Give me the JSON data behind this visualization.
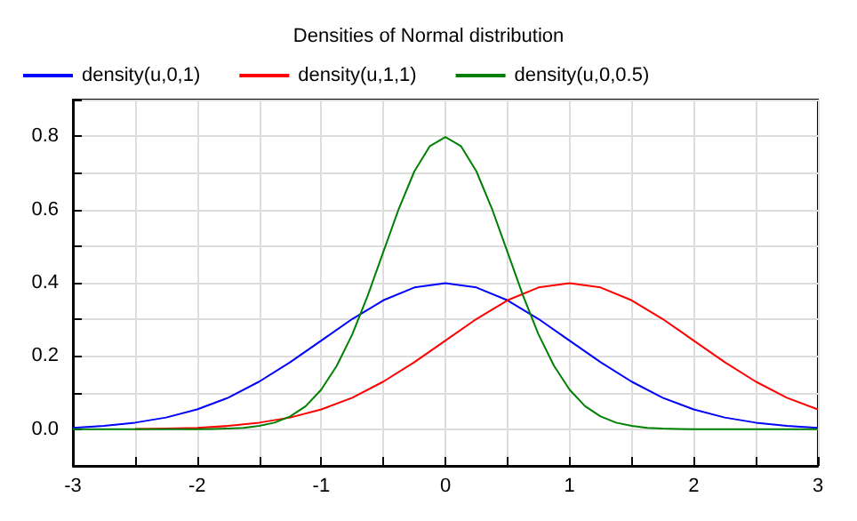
{
  "chart_data": {
    "type": "line",
    "title": "Densities of Normal distribution",
    "legend": "top left",
    "grid": true,
    "line_style": "solid",
    "marker": "none",
    "xlim": [
      -3,
      3
    ],
    "xticks": [
      -3,
      {
        "value": -2.5,
        "label": null
      },
      -2,
      {
        "value": -1.5,
        "label": null
      },
      -1,
      {
        "value": -0.5,
        "label": null
      },
      0,
      {
        "value": 0.5,
        "label": null
      },
      1,
      {
        "value": 1.5,
        "label": null
      },
      2,
      {
        "value": 2.5,
        "label": null
      },
      3
    ],
    "ylim": [
      -0.1,
      0.9
    ],
    "yticks": [
      {
        "value": -0.1,
        "label": null
      },
      {
        "value": 0,
        "label": "0.0"
      },
      {
        "value": 0.1,
        "label": null
      },
      0.2,
      {
        "value": 0.3,
        "label": null
      },
      0.4,
      {
        "value": 0.5,
        "label": null
      },
      0.6,
      {
        "value": 0.7,
        "label": null
      },
      0.8,
      {
        "value": 0.9,
        "label": null
      }
    ],
    "series": [
      {
        "name": "density(u,0,1)",
        "color": "#0000ff",
        "x": [
          -3,
          -2.75,
          -2.5,
          -2.25,
          -2,
          -1.75,
          -1.5,
          -1.25,
          -1,
          -0.75,
          -0.5,
          -0.25,
          0,
          0.25,
          0.5,
          0.75,
          1,
          1.25,
          1.5,
          1.75,
          2,
          2.25,
          2.5,
          2.75,
          3
        ],
        "values": [
          0.004,
          0.009,
          0.018,
          0.032,
          0.054,
          0.086,
          0.13,
          0.183,
          0.242,
          0.301,
          0.352,
          0.387,
          0.399,
          0.387,
          0.352,
          0.301,
          0.242,
          0.183,
          0.13,
          0.086,
          0.054,
          0.032,
          0.018,
          0.009,
          0.004
        ]
      },
      {
        "name": "density(u,1,1)",
        "color": "#ff0000",
        "x": [
          -2.5,
          -2.25,
          -2,
          -1.75,
          -1.5,
          -1.25,
          -1,
          -0.75,
          -0.5,
          -0.25,
          0,
          0.25,
          0.5,
          0.75,
          1,
          1.25,
          1.5,
          1.75,
          2,
          2.25,
          2.5,
          2.75,
          3
        ],
        "values": [
          0.001,
          0.002,
          0.004,
          0.009,
          0.018,
          0.032,
          0.054,
          0.086,
          0.13,
          0.183,
          0.242,
          0.301,
          0.352,
          0.387,
          0.399,
          0.387,
          0.352,
          0.301,
          0.242,
          0.183,
          0.13,
          0.086,
          0.054
        ]
      },
      {
        "name": "density(u,0,0.5)",
        "color": "#008000",
        "x": [
          -3,
          -2.5,
          -2,
          -1.875,
          -1.75,
          -1.625,
          -1.5,
          -1.375,
          -1.25,
          -1.125,
          -1,
          -0.875,
          -0.75,
          -0.625,
          -0.5,
          -0.375,
          -0.25,
          -0.125,
          0,
          0.125,
          0.25,
          0.375,
          0.5,
          0.625,
          0.75,
          0.875,
          1,
          1.125,
          1.25,
          1.375,
          1.5,
          1.625,
          1.75,
          1.875,
          2,
          2.5,
          3
        ],
        "values": [
          0,
          0,
          0,
          0.001,
          0.002,
          0.004,
          0.009,
          0.018,
          0.035,
          0.063,
          0.108,
          0.173,
          0.259,
          0.365,
          0.484,
          0.602,
          0.704,
          0.773,
          0.798,
          0.773,
          0.704,
          0.602,
          0.484,
          0.365,
          0.259,
          0.173,
          0.108,
          0.063,
          0.035,
          0.018,
          0.009,
          0.004,
          0.002,
          0.001,
          0,
          0,
          0
        ]
      }
    ]
  }
}
